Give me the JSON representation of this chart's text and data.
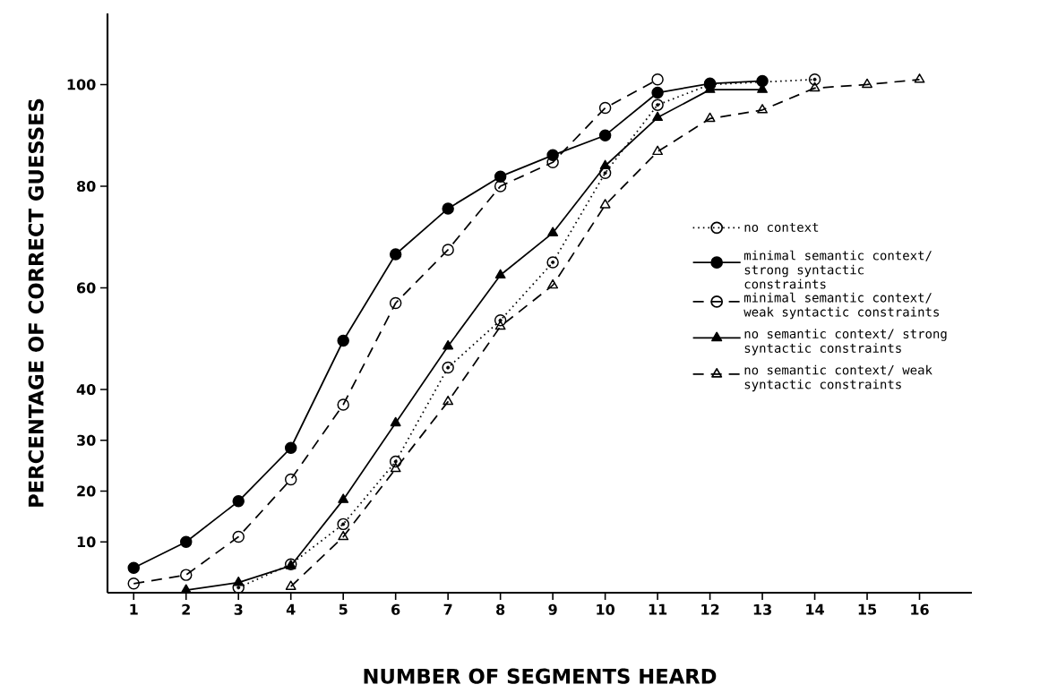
{
  "chart_data": {
    "type": "line",
    "xlabel": "NUMBER OF SEGMENTS HEARD",
    "ylabel": "PERCENTAGE OF CORRECT GUESSES",
    "xlim": [
      0.5,
      17
    ],
    "ylim": [
      0,
      114
    ],
    "xticks": [
      1,
      2,
      3,
      4,
      5,
      6,
      7,
      8,
      9,
      10,
      11,
      12,
      13,
      14,
      15,
      16
    ],
    "yticks": [
      10,
      20,
      30,
      40,
      60,
      80,
      100
    ],
    "grid": false,
    "legend": "right",
    "series": [
      {
        "name": "no context",
        "color": "#000000",
        "marker": "circle",
        "line_style": "dotted",
        "x": [
          3,
          4,
          5,
          6,
          7,
          8,
          9,
          10,
          11,
          12,
          14
        ],
        "values": [
          1,
          5.6,
          13.5,
          25.8,
          44.3,
          53.6,
          65,
          82.6,
          96,
          100,
          101
        ]
      },
      {
        "name": "minimal semantic context/ strong syntactic constraints",
        "color": "#000000",
        "marker": "circle",
        "line_style": "solid",
        "x": [
          1,
          2,
          3,
          4,
          5,
          6,
          7,
          8,
          9,
          10,
          11,
          12,
          13
        ],
        "values": [
          4.9,
          10,
          18,
          28.5,
          49.6,
          66.6,
          75.6,
          81.9,
          86.1,
          90,
          98.4,
          100.2,
          100.7
        ]
      },
      {
        "name": "minimal semantic context/ weak syntactic constraints",
        "color": "#000000",
        "marker": "circle",
        "line_style": "dashed",
        "x": [
          1,
          2,
          3,
          4,
          5,
          6,
          7,
          8,
          9,
          10,
          11
        ],
        "values": [
          1.8,
          3.5,
          11,
          22.3,
          37,
          57,
          67.5,
          80,
          84.7,
          95.4,
          101
        ]
      },
      {
        "name": "no semantic context/ strong syntactic constraints",
        "color": "#000000",
        "marker": "triangle",
        "line_style": "solid",
        "x": [
          2,
          3,
          4,
          5,
          6,
          7,
          8,
          9,
          10,
          11,
          12,
          13
        ],
        "values": [
          0.5,
          2,
          5.3,
          18.3,
          33.4,
          48.5,
          62.5,
          70.8,
          84,
          93.5,
          99,
          99
        ]
      },
      {
        "name": "no semantic context/ weak syntactic constraints",
        "color": "#000000",
        "marker": "triangle",
        "line_style": "dashed",
        "x": [
          4,
          5,
          6,
          7,
          8,
          9,
          10,
          11,
          12,
          13,
          14,
          15,
          16
        ],
        "values": [
          1.2,
          11,
          24.4,
          37.6,
          52.4,
          60.5,
          76.3,
          86.8,
          93.3,
          95,
          99.3,
          100,
          101
        ]
      }
    ]
  }
}
